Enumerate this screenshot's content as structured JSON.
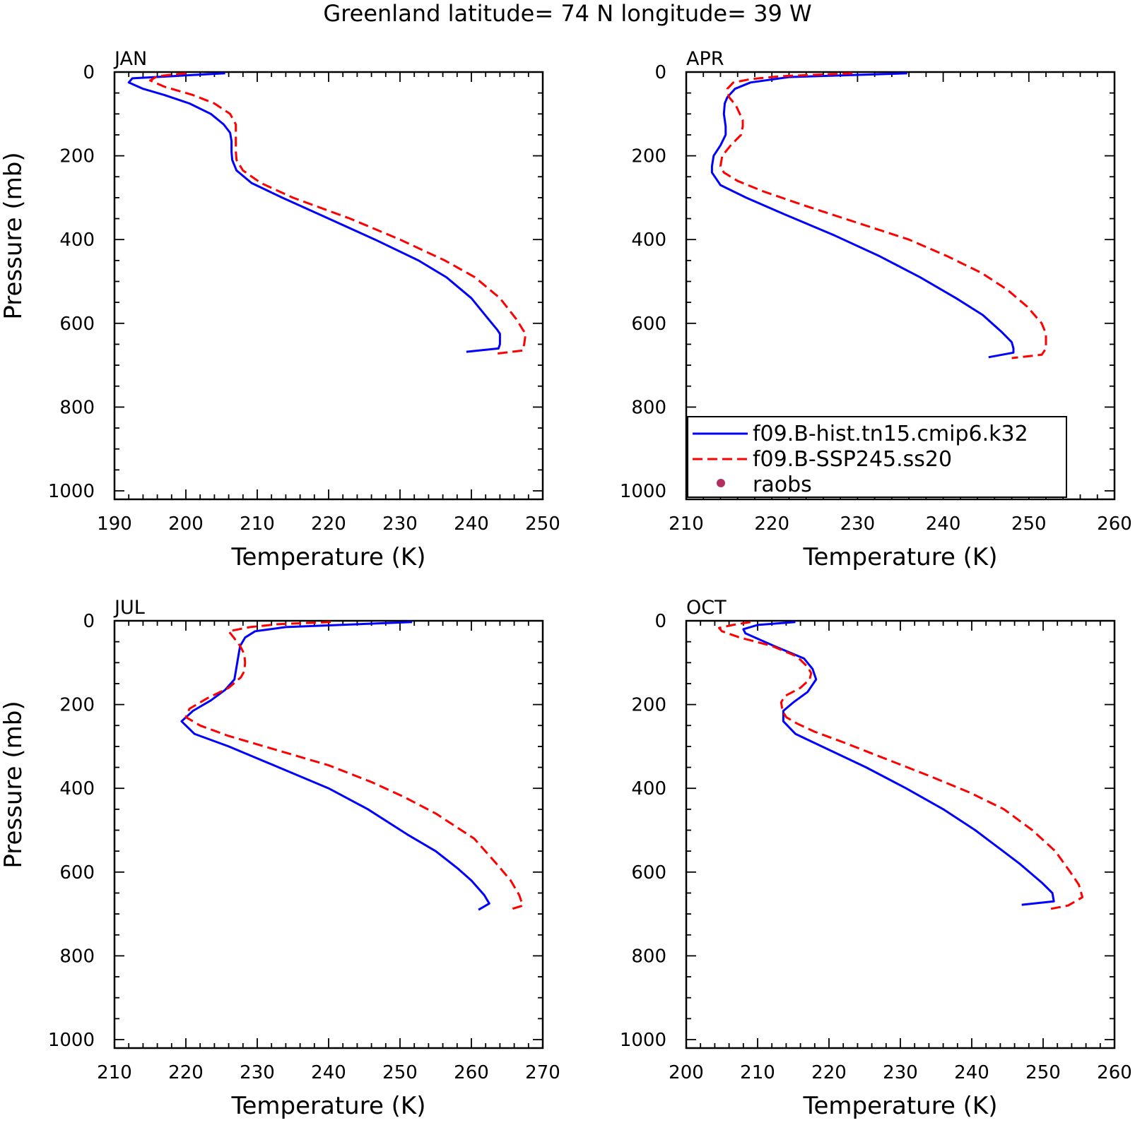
{
  "figure": {
    "title": "Greenland  latitude= 74 N longitude= 39 W"
  },
  "legend": {
    "entries": [
      {
        "name": "f09.B-hist.tn15.cmip6.k32",
        "color": "#0000ff",
        "style": "solid"
      },
      {
        "name": "f09.B-SSP245.ss20",
        "color": "#ff0000",
        "style": "dashed"
      },
      {
        "name": "raobs",
        "color": "#b03060",
        "style": "marker"
      }
    ],
    "panel": "APR",
    "placement": "bottom-left"
  },
  "chart_data": [
    {
      "type": "line",
      "title": "JAN",
      "xlabel": "Temperature (K)",
      "ylabel": "Pressure (mb)",
      "xlim": [
        190,
        250
      ],
      "ylim": [
        0,
        1000
      ],
      "y_inverted": true,
      "xticks": [
        190,
        200,
        210,
        220,
        230,
        240,
        250
      ],
      "yticks": [
        0,
        200,
        400,
        600,
        800,
        1000
      ],
      "series": [
        {
          "name": "f09.B-hist.tn15.cmip6.k32",
          "color": "#0000ff",
          "style": "solid",
          "points": [
            [
              205.5,
              3
            ],
            [
              192.5,
              15
            ],
            [
              192,
              25
            ],
            [
              194,
              40
            ],
            [
              197,
              55
            ],
            [
              200.5,
              75
            ],
            [
              203.5,
              100
            ],
            [
              205.3,
              125
            ],
            [
              206.2,
              145
            ],
            [
              206.4,
              165
            ],
            [
              206.4,
              190
            ],
            [
              206.5,
              210
            ],
            [
              207.1,
              235
            ],
            [
              209.2,
              265
            ],
            [
              213.5,
              300
            ],
            [
              220,
              350
            ],
            [
              226.5,
              400
            ],
            [
              232.6,
              450
            ],
            [
              236.5,
              490
            ],
            [
              240,
              540
            ],
            [
              242.4,
              590
            ],
            [
              243.6,
              615
            ],
            [
              244,
              625
            ],
            [
              244,
              650
            ],
            [
              243.8,
              660
            ],
            [
              239.3,
              668
            ]
          ]
        },
        {
          "name": "f09.B-SSP245.ss20",
          "color": "#ff0000",
          "style": "dashed",
          "points": [
            [
              200,
              3
            ],
            [
              196,
              10
            ],
            [
              195,
              20
            ],
            [
              197,
              35
            ],
            [
              201,
              55
            ],
            [
              204,
              75
            ],
            [
              206.2,
              100
            ],
            [
              207,
              125
            ],
            [
              207,
              165
            ],
            [
              207,
              190
            ],
            [
              207.1,
              210
            ],
            [
              208,
              235
            ],
            [
              210.5,
              265
            ],
            [
              215,
              300
            ],
            [
              223,
              350
            ],
            [
              230,
              400
            ],
            [
              236.3,
              450
            ],
            [
              240.5,
              490
            ],
            [
              244,
              540
            ],
            [
              246.3,
              590
            ],
            [
              247.2,
              615
            ],
            [
              247.6,
              625
            ],
            [
              247.4,
              650
            ],
            [
              247.2,
              665
            ],
            [
              243.2,
              673
            ]
          ]
        }
      ]
    },
    {
      "type": "line",
      "title": "APR",
      "xlabel": "Temperature (K)",
      "ylabel": "",
      "xlim": [
        210,
        260
      ],
      "ylim": [
        0,
        1000
      ],
      "y_inverted": true,
      "xticks": [
        210,
        220,
        230,
        240,
        250,
        260
      ],
      "yticks": [
        0,
        200,
        400,
        600,
        800,
        1000
      ],
      "series": [
        {
          "name": "f09.B-hist.tn15.cmip6.k32",
          "color": "#0000ff",
          "style": "solid",
          "points": [
            [
              235.8,
              3
            ],
            [
              222,
              12
            ],
            [
              217.5,
              25
            ],
            [
              215.7,
              40
            ],
            [
              214.8,
              60
            ],
            [
              214.5,
              75
            ],
            [
              214.4,
              100
            ],
            [
              214.6,
              130
            ],
            [
              214.6,
              150
            ],
            [
              214,
              175
            ],
            [
              213.2,
              200
            ],
            [
              213,
              225
            ],
            [
              213,
              240
            ],
            [
              214,
              270
            ],
            [
              217,
              300
            ],
            [
              221.5,
              340
            ],
            [
              227.3,
              390
            ],
            [
              232.6,
              440
            ],
            [
              237.3,
              490
            ],
            [
              241.5,
              540
            ],
            [
              244.6,
              580
            ],
            [
              246.8,
              620
            ],
            [
              248,
              645
            ],
            [
              248.2,
              660
            ],
            [
              248.2,
              670
            ],
            [
              245.3,
              681
            ]
          ]
        },
        {
          "name": "f09.B-SSP245.ss20",
          "color": "#ff0000",
          "style": "dashed",
          "points": [
            [
              229.4,
              3
            ],
            [
              221,
              10
            ],
            [
              217.5,
              17
            ],
            [
              215.5,
              25
            ],
            [
              214.8,
              40
            ],
            [
              215,
              60
            ],
            [
              215.8,
              80
            ],
            [
              216.6,
              115
            ],
            [
              216.6,
              130
            ],
            [
              216.4,
              150
            ],
            [
              215.2,
              175
            ],
            [
              214.2,
              200
            ],
            [
              214,
              225
            ],
            [
              214.4,
              240
            ],
            [
              216,
              260
            ],
            [
              219,
              285
            ],
            [
              224,
              320
            ],
            [
              230,
              360
            ],
            [
              236,
              400
            ],
            [
              240.5,
              440
            ],
            [
              244.5,
              480
            ],
            [
              247.5,
              520
            ],
            [
              249.8,
              560
            ],
            [
              251.5,
              600
            ],
            [
              252,
              625
            ],
            [
              252,
              660
            ],
            [
              251.5,
              675
            ],
            [
              248,
              683
            ]
          ]
        }
      ]
    },
    {
      "type": "line",
      "title": "JUL",
      "xlabel": "Temperature (K)",
      "ylabel": "Pressure (mb)",
      "xlim": [
        210,
        270
      ],
      "ylim": [
        0,
        1000
      ],
      "y_inverted": true,
      "xticks": [
        210,
        220,
        230,
        240,
        250,
        260,
        270
      ],
      "yticks": [
        0,
        200,
        400,
        600,
        800,
        1000
      ],
      "series": [
        {
          "name": "f09.B-hist.tn15.cmip6.k32",
          "color": "#0000ff",
          "style": "solid",
          "points": [
            [
              251.7,
              3
            ],
            [
              234,
              15
            ],
            [
              229.7,
              25
            ],
            [
              228.3,
              40
            ],
            [
              227.6,
              60
            ],
            [
              227.4,
              80
            ],
            [
              227.1,
              110
            ],
            [
              226.8,
              140
            ],
            [
              225.5,
              165
            ],
            [
              223.5,
              190
            ],
            [
              221,
              215
            ],
            [
              219.4,
              240
            ],
            [
              221.2,
              270
            ],
            [
              226,
              300
            ],
            [
              233,
              350
            ],
            [
              240,
              400
            ],
            [
              245.5,
              450
            ],
            [
              251,
              510
            ],
            [
              255,
              550
            ],
            [
              258,
              590
            ],
            [
              260,
              620
            ],
            [
              261.8,
              655
            ],
            [
              262.5,
              675
            ],
            [
              261,
              690
            ]
          ]
        },
        {
          "name": "f09.B-SSP245.ss20",
          "color": "#ff0000",
          "style": "dashed",
          "points": [
            [
              240.3,
              3
            ],
            [
              233,
              8
            ],
            [
              229,
              15
            ],
            [
              226,
              25
            ],
            [
              226.7,
              40
            ],
            [
              227.6,
              60
            ],
            [
              228.2,
              80
            ],
            [
              228.3,
              100
            ],
            [
              228.2,
              120
            ],
            [
              227.7,
              135
            ],
            [
              226,
              160
            ],
            [
              223,
              185
            ],
            [
              220.5,
              210
            ],
            [
              220,
              230
            ],
            [
              222,
              250
            ],
            [
              226,
              275
            ],
            [
              233,
              310
            ],
            [
              240,
              345
            ],
            [
              246,
              385
            ],
            [
              250.5,
              420
            ],
            [
              255,
              460
            ],
            [
              260.4,
              520
            ],
            [
              263.5,
              580
            ],
            [
              265.5,
              620
            ],
            [
              266.7,
              655
            ],
            [
              267.2,
              680
            ],
            [
              265.3,
              690
            ]
          ]
        }
      ]
    },
    {
      "type": "line",
      "title": "OCT",
      "xlabel": "Temperature (K)",
      "ylabel": "",
      "xlim": [
        200,
        260
      ],
      "ylim": [
        0,
        1000
      ],
      "y_inverted": true,
      "xticks": [
        200,
        210,
        220,
        230,
        240,
        250,
        260
      ],
      "yticks": [
        0,
        200,
        400,
        600,
        800,
        1000
      ],
      "series": [
        {
          "name": "f09.B-hist.tn15.cmip6.k32",
          "color": "#0000ff",
          "style": "solid",
          "points": [
            [
              215.3,
              3
            ],
            [
              210,
              10
            ],
            [
              208,
              20
            ],
            [
              208.3,
              30
            ],
            [
              212.3,
              60
            ],
            [
              216.5,
              90
            ],
            [
              217.7,
              115
            ],
            [
              218.2,
              140
            ],
            [
              217,
              170
            ],
            [
              215,
              195
            ],
            [
              213.6,
              215
            ],
            [
              213.6,
              240
            ],
            [
              215.3,
              270
            ],
            [
              219,
              300
            ],
            [
              225.2,
              350
            ],
            [
              230.8,
              400
            ],
            [
              236,
              450
            ],
            [
              240.5,
              500
            ],
            [
              244,
              545
            ],
            [
              246.7,
              580
            ],
            [
              249.8,
              625
            ],
            [
              251.3,
              650
            ],
            [
              251.5,
              670
            ],
            [
              247,
              678
            ]
          ]
        },
        {
          "name": "f09.B-SSP245.ss20",
          "color": "#ff0000",
          "style": "dashed",
          "points": [
            [
              209,
              3
            ],
            [
              206.5,
              10
            ],
            [
              204.6,
              17
            ],
            [
              205,
              25
            ],
            [
              207.5,
              40
            ],
            [
              212,
              60
            ],
            [
              215.5,
              85
            ],
            [
              217,
              110
            ],
            [
              217.5,
              125
            ],
            [
              217.3,
              140
            ],
            [
              216,
              160
            ],
            [
              213.8,
              180
            ],
            [
              213.3,
              195
            ],
            [
              213.5,
              215
            ],
            [
              214,
              230
            ],
            [
              215.5,
              245
            ],
            [
              218,
              265
            ],
            [
              222,
              290
            ],
            [
              228,
              330
            ],
            [
              234,
              370
            ],
            [
              239.7,
              410
            ],
            [
              244.5,
              450
            ],
            [
              248.5,
              500
            ],
            [
              251.7,
              550
            ],
            [
              253.8,
              600
            ],
            [
              255,
              630
            ],
            [
              255.5,
              660
            ],
            [
              253.5,
              680
            ],
            [
              251,
              688
            ]
          ]
        }
      ]
    }
  ]
}
